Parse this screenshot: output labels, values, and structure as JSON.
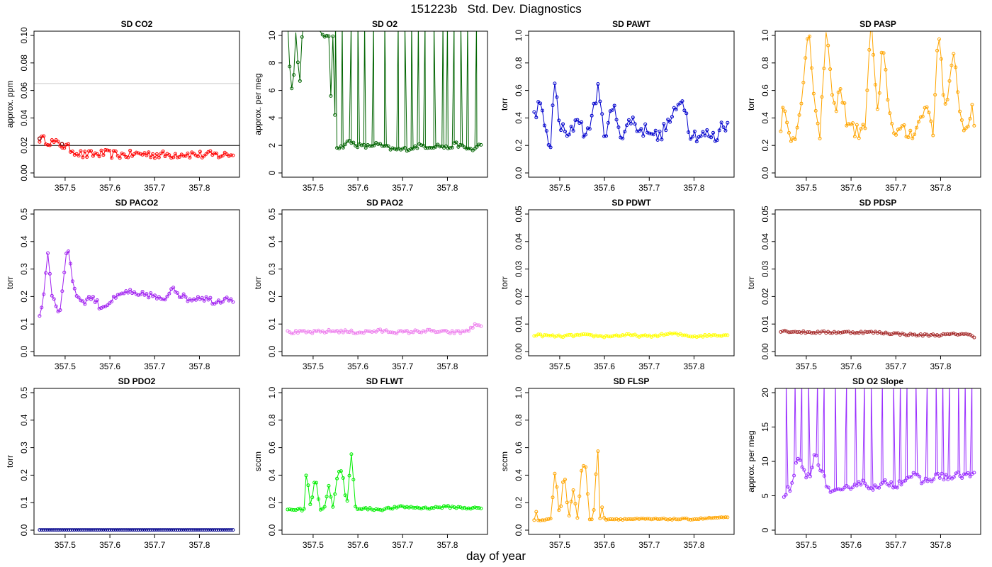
{
  "figure": {
    "title": "151223b   Std. Dev. Diagnostics",
    "xlabel": "day of year"
  },
  "chart_data": [
    {
      "type": "line",
      "title": "SD CO2",
      "ylabel": "approx. ppm",
      "color": "#ff0000",
      "xlim": [
        357.44,
        357.88
      ],
      "ylim": [
        0,
        0.1
      ],
      "yticks": [
        0,
        0.02,
        0.04,
        0.06,
        0.08,
        0.1
      ],
      "xticks": [
        357.5,
        357.6,
        357.7,
        357.8
      ],
      "hlines": [
        {
          "y": 0.02,
          "color": "#000000"
        },
        {
          "y": 0.065,
          "color": "#cccccc"
        }
      ],
      "flagged_points": [
        {
          "x": 357.443,
          "y": 0.025
        },
        {
          "x": 357.493,
          "y": 0.021
        }
      ],
      "flag_color": "#8b0000",
      "x": [
        357.443,
        357.495,
        357.54,
        357.585,
        357.63,
        357.675,
        357.72,
        357.765,
        357.81,
        357.855,
        357.875
      ],
      "y": [
        0.025,
        0.02,
        0.013,
        0.014,
        0.013,
        0.014,
        0.013,
        0.014,
        0.013,
        0.013,
        0.014
      ],
      "noise": 0.003
    },
    {
      "type": "line",
      "title": "SD O2",
      "ylabel": "approx. per meg",
      "color": "#006400",
      "xlim": [
        357.44,
        357.88
      ],
      "ylim": [
        0,
        10
      ],
      "yticks": [
        0,
        2,
        4,
        6,
        8,
        10
      ],
      "xticks": [
        357.5,
        357.6,
        357.7,
        357.8
      ],
      "x": [
        357.443,
        357.45,
        357.456,
        357.46,
        357.47,
        357.475,
        357.48,
        357.535,
        357.54,
        357.545,
        357.55,
        357.56,
        357.58,
        357.6,
        357.62,
        357.64,
        357.66,
        357.68,
        357.7,
        357.72,
        357.74,
        357.76,
        357.78,
        357.8,
        357.82,
        357.84,
        357.86,
        357.875
      ],
      "y": [
        11,
        6.2,
        6.1,
        11,
        6.3,
        9.8,
        11,
        9.8,
        5.2,
        11,
        2,
        1.8,
        2.3,
        2,
        1.9,
        2.1,
        1.9,
        1.7,
        1.7,
        1.8,
        2,
        1.9,
        2,
        1.8,
        2.1,
        1.8,
        1.7,
        2.1
      ],
      "spikes": [
        357.55,
        357.565,
        357.585,
        357.6,
        357.615,
        357.635,
        357.66,
        357.69,
        357.705,
        357.72,
        357.735,
        357.75,
        357.77,
        357.79,
        357.8,
        357.815,
        357.83,
        357.845,
        357.865
      ],
      "spike_y": 11,
      "noise": 0.15
    },
    {
      "type": "line",
      "title": "SD PAWT",
      "ylabel": "torr",
      "color": "#0000cd",
      "xlim": [
        357.44,
        357.88
      ],
      "ylim": [
        0,
        1
      ],
      "yticks": [
        0,
        0.2,
        0.4,
        0.6,
        0.8,
        1
      ],
      "xticks": [
        357.5,
        357.6,
        357.7,
        357.8
      ],
      "x": [
        357.443,
        357.455,
        357.47,
        357.48,
        357.488,
        357.5,
        357.52,
        357.54,
        357.56,
        357.585,
        357.6,
        357.62,
        357.64,
        357.66,
        357.68,
        357.7,
        357.72,
        357.74,
        357.76,
        357.775,
        357.79,
        357.81,
        357.83,
        357.85,
        357.865,
        357.875
      ],
      "y": [
        0.42,
        0.5,
        0.3,
        0.18,
        0.68,
        0.35,
        0.25,
        0.42,
        0.25,
        0.61,
        0.28,
        0.48,
        0.26,
        0.4,
        0.3,
        0.33,
        0.25,
        0.35,
        0.45,
        0.56,
        0.3,
        0.27,
        0.28,
        0.25,
        0.38,
        0.33
      ],
      "noise": 0.05
    },
    {
      "type": "line",
      "title": "SD PASP",
      "ylabel": "torr",
      "color": "#ffa500",
      "xlim": [
        357.44,
        357.88
      ],
      "ylim": [
        0,
        1
      ],
      "yticks": [
        0,
        0.2,
        0.4,
        0.6,
        0.8,
        1
      ],
      "xticks": [
        357.5,
        357.6,
        357.7,
        357.8
      ],
      "x": [
        357.443,
        357.45,
        357.46,
        357.48,
        357.49,
        357.505,
        357.515,
        357.53,
        357.545,
        357.56,
        357.575,
        357.59,
        357.61,
        357.63,
        357.645,
        357.66,
        357.67,
        357.69,
        357.71,
        357.73,
        357.75,
        357.77,
        357.785,
        357.795,
        357.81,
        357.83,
        357.85,
        357.87,
        357.875
      ],
      "y": [
        0.3,
        0.56,
        0.28,
        0.3,
        0.5,
        1.1,
        0.68,
        0.2,
        1.1,
        0.42,
        0.6,
        0.4,
        0.3,
        0.3,
        1.1,
        0.38,
        0.92,
        0.34,
        0.3,
        0.28,
        0.35,
        0.5,
        0.3,
        1.1,
        0.45,
        0.84,
        0.3,
        0.45,
        0.3
      ],
      "noise": 0.06
    },
    {
      "type": "line",
      "title": "SD PACO2",
      "ylabel": "torr",
      "color": "#a020f0",
      "xlim": [
        357.44,
        357.88
      ],
      "ylim": [
        0,
        0.5
      ],
      "yticks": [
        0,
        0.1,
        0.2,
        0.3,
        0.4,
        0.5
      ],
      "xticks": [
        357.5,
        357.6,
        357.7,
        357.8
      ],
      "x": [
        357.443,
        357.455,
        357.46,
        357.47,
        357.48,
        357.487,
        357.495,
        357.505,
        357.52,
        357.54,
        357.56,
        357.58,
        357.6,
        357.62,
        357.64,
        357.66,
        357.68,
        357.7,
        357.72,
        357.74,
        357.76,
        357.78,
        357.8,
        357.82,
        357.84,
        357.86,
        357.875
      ],
      "y": [
        0.13,
        0.23,
        0.39,
        0.21,
        0.17,
        0.14,
        0.23,
        0.4,
        0.22,
        0.18,
        0.2,
        0.16,
        0.18,
        0.2,
        0.22,
        0.2,
        0.21,
        0.2,
        0.18,
        0.24,
        0.2,
        0.19,
        0.2,
        0.19,
        0.18,
        0.2,
        0.19
      ],
      "noise": 0.012
    },
    {
      "type": "line",
      "title": "SD PAO2",
      "ylabel": "torr",
      "color": "#ee82ee",
      "xlim": [
        357.44,
        357.88
      ],
      "ylim": [
        0,
        0.5
      ],
      "yticks": [
        0,
        0.1,
        0.2,
        0.3,
        0.4,
        0.5
      ],
      "xticks": [
        357.5,
        357.6,
        357.7,
        357.8
      ],
      "x": [
        357.443,
        357.5,
        357.55,
        357.6,
        357.65,
        357.7,
        357.75,
        357.8,
        357.83,
        357.85,
        357.865,
        357.875
      ],
      "y": [
        0.07,
        0.07,
        0.075,
        0.07,
        0.075,
        0.07,
        0.075,
        0.07,
        0.07,
        0.08,
        0.1,
        0.09
      ],
      "noise": 0.006
    },
    {
      "type": "line",
      "title": "SD PDWT",
      "ylabel": "torr",
      "color": "#ffff00",
      "xlim": [
        357.44,
        357.88
      ],
      "ylim": [
        0,
        0.05
      ],
      "yticks": [
        0,
        0.01,
        0.02,
        0.03,
        0.04,
        0.05
      ],
      "xticks": [
        357.5,
        357.6,
        357.7,
        357.8
      ],
      "x": [
        357.443,
        357.5,
        357.55,
        357.6,
        357.65,
        357.7,
        357.75,
        357.8,
        357.85,
        357.875
      ],
      "y": [
        0.006,
        0.0055,
        0.006,
        0.0055,
        0.006,
        0.0055,
        0.0065,
        0.0055,
        0.006,
        0.006
      ],
      "noise": 0.0004
    },
    {
      "type": "line",
      "title": "SD PDSP",
      "ylabel": "torr",
      "color": "#a52a2a",
      "xlim": [
        357.44,
        357.88
      ],
      "ylim": [
        0,
        0.05
      ],
      "yticks": [
        0,
        0.01,
        0.02,
        0.03,
        0.04,
        0.05
      ],
      "xticks": [
        357.5,
        357.6,
        357.7,
        357.8
      ],
      "x": [
        357.443,
        357.5,
        357.55,
        357.6,
        357.65,
        357.7,
        357.75,
        357.8,
        357.85,
        357.875
      ],
      "y": [
        0.0075,
        0.007,
        0.007,
        0.007,
        0.007,
        0.0065,
        0.006,
        0.006,
        0.0065,
        0.0055
      ],
      "noise": 0.0004
    },
    {
      "type": "line",
      "title": "SD PDO2",
      "ylabel": "torr",
      "color": "#00008b",
      "xlim": [
        357.44,
        357.88
      ],
      "ylim": [
        0,
        0.5
      ],
      "yticks": [
        0,
        0.1,
        0.2,
        0.3,
        0.4,
        0.5
      ],
      "xticks": [
        357.5,
        357.6,
        357.7,
        357.8
      ],
      "x": [
        357.443,
        357.875
      ],
      "y": [
        0.001,
        0.001
      ],
      "noise": 0
    },
    {
      "type": "line",
      "title": "SD FLWT",
      "ylabel": "sccm",
      "color": "#00ee00",
      "xlim": [
        357.44,
        357.88
      ],
      "ylim": [
        0,
        1
      ],
      "yticks": [
        0,
        0.2,
        0.4,
        0.6,
        0.8,
        1
      ],
      "xticks": [
        357.5,
        357.6,
        357.7,
        357.8
      ],
      "x": [
        357.443,
        357.47,
        357.48,
        357.485,
        357.495,
        357.505,
        357.515,
        357.525,
        357.535,
        357.545,
        357.555,
        357.565,
        357.575,
        357.585,
        357.595,
        357.65,
        357.7,
        357.75,
        357.8,
        357.85,
        357.875
      ],
      "y": [
        0.15,
        0.15,
        0.15,
        0.44,
        0.15,
        0.41,
        0.15,
        0.16,
        0.32,
        0.16,
        0.42,
        0.43,
        0.16,
        0.57,
        0.16,
        0.15,
        0.17,
        0.16,
        0.17,
        0.16,
        0.16
      ],
      "noise": 0.008
    },
    {
      "type": "line",
      "title": "SD FLSP",
      "ylabel": "sccm",
      "color": "#ffa500",
      "xlim": [
        357.44,
        357.88
      ],
      "ylim": [
        0,
        1
      ],
      "yticks": [
        0,
        0.2,
        0.4,
        0.6,
        0.8,
        1
      ],
      "xticks": [
        357.5,
        357.6,
        357.7,
        357.8
      ],
      "x": [
        357.443,
        357.447,
        357.45,
        357.48,
        357.49,
        357.5,
        357.51,
        357.52,
        357.53,
        357.54,
        357.55,
        357.56,
        357.565,
        357.575,
        357.585,
        357.59,
        357.595,
        357.6,
        357.65,
        357.7,
        357.75,
        357.8,
        357.85,
        357.875
      ],
      "y": [
        0.07,
        0.15,
        0.07,
        0.08,
        0.45,
        0.08,
        0.44,
        0.08,
        0.3,
        0.08,
        0.48,
        0.45,
        0.08,
        0.08,
        0.63,
        0.08,
        0.17,
        0.08,
        0.08,
        0.08,
        0.08,
        0.08,
        0.09,
        0.09
      ],
      "noise": 0.005
    },
    {
      "type": "line",
      "title": "SD O2 Slope",
      "ylabel": "approx. per meg",
      "color": "#9b30ff",
      "xlim": [
        357.44,
        357.88
      ],
      "ylim": [
        0,
        20
      ],
      "yticks": [
        0,
        5,
        10,
        15,
        20
      ],
      "xticks": [
        357.5,
        357.6,
        357.7,
        357.8
      ],
      "x": [
        357.45,
        357.46,
        357.47,
        357.48,
        357.5,
        357.51,
        357.52,
        357.53,
        357.55,
        357.56,
        357.58,
        357.6,
        357.62,
        357.64,
        357.66,
        357.68,
        357.7,
        357.72,
        357.74,
        357.76,
        357.78,
        357.8,
        357.82,
        357.84,
        357.86,
        357.875
      ],
      "y": [
        5,
        6,
        6.5,
        10.5,
        8,
        7.5,
        12,
        9,
        6,
        5.5,
        5.5,
        6.5,
        7,
        6.5,
        6,
        7,
        6.5,
        7.5,
        8,
        7,
        7.5,
        8,
        7.5,
        8,
        8,
        8
      ],
      "spikes": [
        357.455,
        357.475,
        357.49,
        357.505,
        357.525,
        357.54,
        357.565,
        357.59,
        357.61,
        357.63,
        357.645,
        357.67,
        357.695,
        357.71,
        357.725,
        357.745,
        357.77,
        357.79,
        357.805,
        357.82,
        357.84,
        357.855,
        357.87
      ],
      "spike_y": 22,
      "noise": 0.5
    }
  ]
}
